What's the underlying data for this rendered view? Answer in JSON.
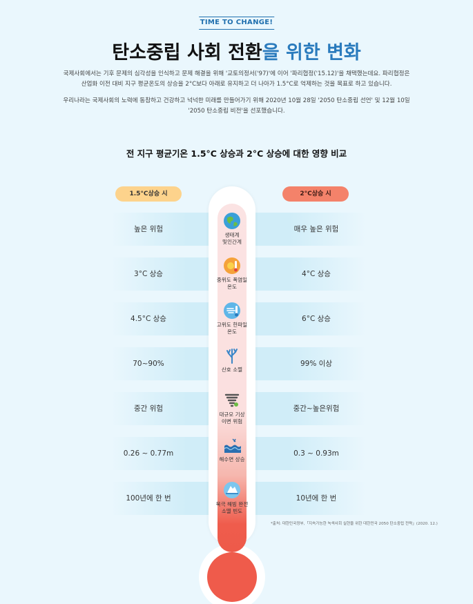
{
  "header": {
    "badge": "TIME TO CHANGE!",
    "title_main": "탄소중립 사회 전환",
    "title_highlight": "을 위한 변화"
  },
  "intro": {
    "p1_line1": "국제사회에서는 기후 문제의 심각성을 인식하고 문제 해결을 위해 '교토의정서('97)'에 이어 '파리협정('15.12)'을 채택했는데요. 파리협정은",
    "p1_line2": "산업화 이전 대비 지구 평균온도의 상승을 2°C보다 아래로 유지하고 더 나아가 1.5°C로 억제하는 것을 목표로 하고 있습니다.",
    "p2_line1": "우리나라는 국제사회의 노력에 동참하고 건강하고 넉넉한 미래를 만들어가기 위해 2020년 10월 28일 '2050 탄소중립 선언' 및 12월 10일",
    "p2_line2": "'2050 탄소중립 비전'을 선포했습니다."
  },
  "comparison": {
    "subtitle": "전 지구 평균기온 1.5°C 상승과 2°C 상승에 대한 영향 비교",
    "left_header": "1.5°C상승 시",
    "right_header": "2°C상승 시",
    "rows": [
      {
        "category": "생태계\n및인간계",
        "icon": "globe-icon",
        "left": "높은 위험",
        "right": "매우 높은 위험"
      },
      {
        "category": "중위도 폭염일\n온도",
        "icon": "heat-wave-icon",
        "left": "3°C 상승",
        "right": "4°C 상승"
      },
      {
        "category": "고위도 한파일\n온도",
        "icon": "cold-wave-icon",
        "left": "4.5°C 상승",
        "right": "6°C 상승"
      },
      {
        "category": "산호 소멸",
        "icon": "coral-icon",
        "left": "70~90%",
        "right": "99% 이상"
      },
      {
        "category": "대규모 기상\n이변 위험",
        "icon": "tornado-icon",
        "left": "중간 위험",
        "right": "중간~높은위험"
      },
      {
        "category": "해수면 상승",
        "icon": "sea-level-icon",
        "left": "0.26 ~ 0.77m",
        "right": "0.3 ~ 0.93m"
      },
      {
        "category": "북극 해빙 완전\n소멸 빈도",
        "icon": "iceberg-icon",
        "left": "100년에 한 번",
        "right": "10년에 한 번"
      }
    ],
    "source": "*출처: 대한민국정부,「지속가능한 녹색사회 실현을 위한 대한민국 2050 탄소중립 전략」(2020. 12.)"
  },
  "colors": {
    "background": "#eaf7fd",
    "accent_blue": "#2a7bbd",
    "pill_left": "#fdd38c",
    "pill_right": "#f4826a",
    "thermometer_red": "#ef5b4b"
  }
}
